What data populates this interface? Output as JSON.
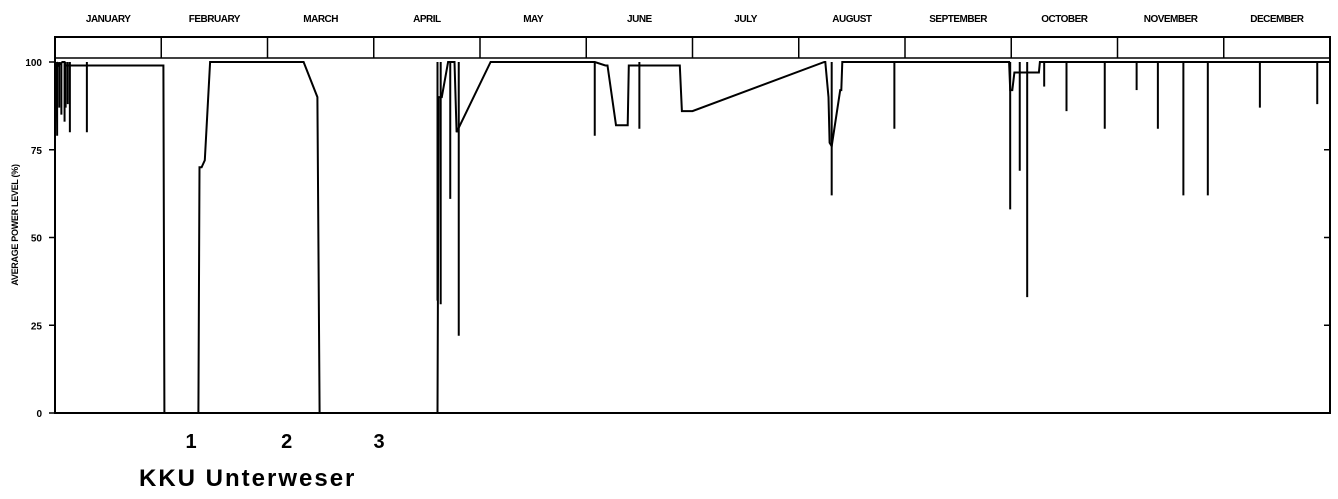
{
  "chart_data": {
    "type": "line",
    "title": "KKU Unterweser",
    "ylabel": "AVERAGE POWER LEVEL (%)",
    "xlabel": "",
    "months": [
      "JANUARY",
      "FEBRUARY",
      "MARCH",
      "APRIL",
      "MAY",
      "JUNE",
      "JULY",
      "AUGUST",
      "SEPTEMBER",
      "OCTOBER",
      "NOVEMBER",
      "DECEMBER"
    ],
    "yticks": [
      0,
      25,
      50,
      75,
      100
    ],
    "ylim": [
      0,
      104
    ],
    "xlim": [
      0,
      12
    ],
    "grid": false,
    "events": [
      {
        "label": "1",
        "x": 1.28
      },
      {
        "label": "2",
        "x": 2.18
      },
      {
        "label": "3",
        "x": 3.05
      }
    ],
    "series": [
      {
        "x": [
          0,
          0.02,
          0.03,
          0.07,
          0.09,
          0.1,
          0.12,
          1.02,
          1.03,
          1.35,
          1.36,
          1.38,
          1.41,
          1.46,
          1.47,
          2.3,
          2.34,
          2.47,
          2.47,
          2.49,
          3.6,
          3.61,
          3.64,
          3.7,
          3.76,
          3.78,
          4.1,
          5.0,
          5.08,
          5.18,
          5.2,
          5.28,
          5.3,
          5.39,
          5.4,
          5.4,
          5.88,
          5.9,
          6.0,
          7.24,
          7.25,
          7.28,
          7.29,
          7.31,
          7.39,
          7.4,
          7.41,
          7.6,
          8.98,
          8.99,
          9.01,
          9.03,
          9.05,
          9.15,
          9.26,
          9.27,
          9.33,
          12
        ],
        "y": [
          80,
          100,
          99,
          100,
          100,
          99,
          99,
          99,
          0,
          0,
          70,
          70,
          72,
          100,
          100,
          100,
          100,
          90,
          90,
          0,
          0,
          90,
          90,
          100,
          100,
          80,
          100,
          100,
          100,
          99,
          99,
          82,
          82,
          82,
          99,
          99,
          99,
          86,
          86,
          100,
          100,
          90,
          77,
          76,
          92,
          92,
          100,
          100,
          100,
          92,
          92,
          97,
          97,
          97,
          97,
          100,
          100,
          100
        ],
        "spikes": [
          {
            "x": 0.02,
            "y": 79
          },
          {
            "x": 0.04,
            "y": 87
          },
          {
            "x": 0.06,
            "y": 85
          },
          {
            "x": 0.09,
            "y": 83
          },
          {
            "x": 0.1,
            "y": 87
          },
          {
            "x": 0.12,
            "y": 88
          },
          {
            "x": 0.14,
            "y": 80
          },
          {
            "x": 0.3,
            "y": 80
          },
          {
            "x": 3.6,
            "y": 32
          },
          {
            "x": 3.63,
            "y": 31
          },
          {
            "x": 3.72,
            "y": 61
          },
          {
            "x": 3.8,
            "y": 22
          },
          {
            "x": 5.08,
            "y": 79
          },
          {
            "x": 5.5,
            "y": 81
          },
          {
            "x": 7.31,
            "y": 62
          },
          {
            "x": 7.9,
            "y": 81
          },
          {
            "x": 8.99,
            "y": 58
          },
          {
            "x": 9.08,
            "y": 69
          },
          {
            "x": 9.15,
            "y": 33
          },
          {
            "x": 9.31,
            "y": 93
          },
          {
            "x": 9.52,
            "y": 86
          },
          {
            "x": 9.88,
            "y": 81
          },
          {
            "x": 10.18,
            "y": 92
          },
          {
            "x": 10.38,
            "y": 81
          },
          {
            "x": 10.62,
            "y": 62
          },
          {
            "x": 10.85,
            "y": 62
          },
          {
            "x": 11.34,
            "y": 87
          },
          {
            "x": 11.88,
            "y": 88
          }
        ]
      }
    ]
  }
}
